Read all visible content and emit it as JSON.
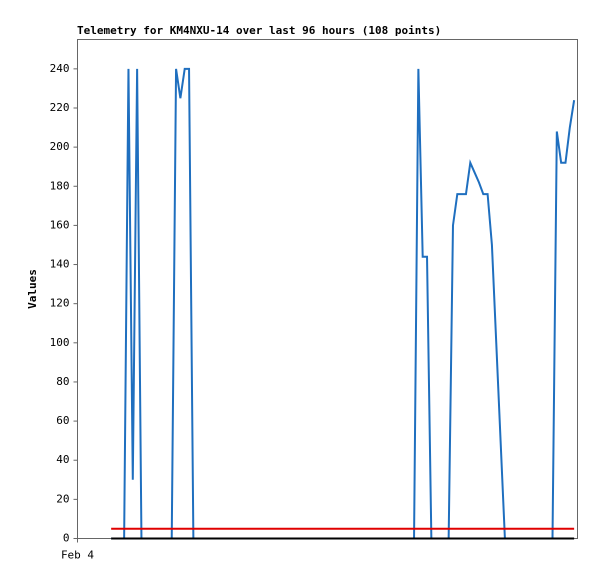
{
  "chart_data": {
    "type": "line",
    "title": "Telemetry for KM4NXU-14 over last 96 hours (108 points)",
    "y_label": "Values",
    "xlim": [
      0,
      104
    ],
    "xticks": [
      {
        "value": 0,
        "label": "Feb 4"
      }
    ],
    "ylim": [
      0,
      255
    ],
    "yticks": [
      0,
      20,
      40,
      60,
      80,
      100,
      120,
      140,
      160,
      180,
      200,
      220,
      240
    ],
    "series": [
      {
        "color": "#1f6fbf",
        "x": [
          7.0,
          7.9,
          8.8,
          9.7,
          10.6,
          11.5,
          12.4,
          13.3,
          14.2,
          15.1,
          16,
          16.9,
          17.8,
          18.7,
          19.6,
          20.5,
          21.4,
          22.3,
          23.2,
          24.1,
          25,
          25.9,
          26.8,
          27.7,
          28.6,
          29.5,
          30.4,
          31.3,
          32.2,
          33.1,
          34,
          34.9,
          35.8,
          36.7,
          37.6,
          38.5,
          39.4,
          40.3,
          41.2,
          42.1,
          43,
          43.9,
          44.8,
          45.7,
          46.6,
          47.5,
          48.4,
          49.3,
          50.2,
          51.1,
          52,
          52.9,
          53.8,
          54.7,
          55.6,
          56.5,
          57.4,
          58.3,
          59.2,
          60.1,
          61,
          61.9,
          62.8,
          63.7,
          64.6,
          65.5,
          66.4,
          67.3,
          68.2,
          69.1,
          70,
          70.9,
          71.8,
          72.7,
          73.6,
          74.5,
          75.4,
          76.3,
          77.2,
          78.1,
          79,
          79.9,
          80.8,
          81.7,
          82.6,
          83.5,
          84.4,
          85.3,
          86.2,
          87.1,
          88,
          88.9,
          89.8,
          90.7,
          91.6,
          92.5,
          93.4,
          94.3,
          95.2,
          96.1,
          97,
          97.9,
          98.8,
          99.7,
          100.6,
          101.5,
          102.4,
          103.3
        ],
        "values": [
          0,
          0,
          0,
          0,
          240,
          30,
          240,
          0,
          0,
          0,
          0,
          0,
          0,
          0,
          0,
          240,
          225,
          240,
          240,
          0,
          0,
          0,
          0,
          0,
          0,
          0,
          0,
          0,
          0,
          0,
          0,
          0,
          0,
          0,
          0,
          0,
          0,
          0,
          0,
          0,
          0,
          0,
          0,
          0,
          0,
          0,
          0,
          0,
          0,
          0,
          0,
          0,
          0,
          0,
          0,
          0,
          0,
          0,
          0,
          0,
          0,
          0,
          0,
          0,
          0,
          0,
          0,
          0,
          0,
          0,
          0,
          240,
          144,
          144,
          0,
          0,
          0,
          0,
          0,
          160,
          176,
          176,
          176,
          192,
          187,
          182,
          176,
          176,
          150,
          100,
          50,
          0,
          0,
          0,
          0,
          0,
          0,
          0,
          0,
          0,
          0,
          0,
          0,
          208,
          192,
          192,
          210,
          224
        ]
      },
      {
        "color": "#e00000",
        "x": [
          7.0,
          103.3
        ],
        "values": [
          5,
          5
        ]
      },
      {
        "color": "#000000",
        "x": [
          7.0,
          103.3
        ],
        "values": [
          0,
          0
        ]
      }
    ]
  }
}
